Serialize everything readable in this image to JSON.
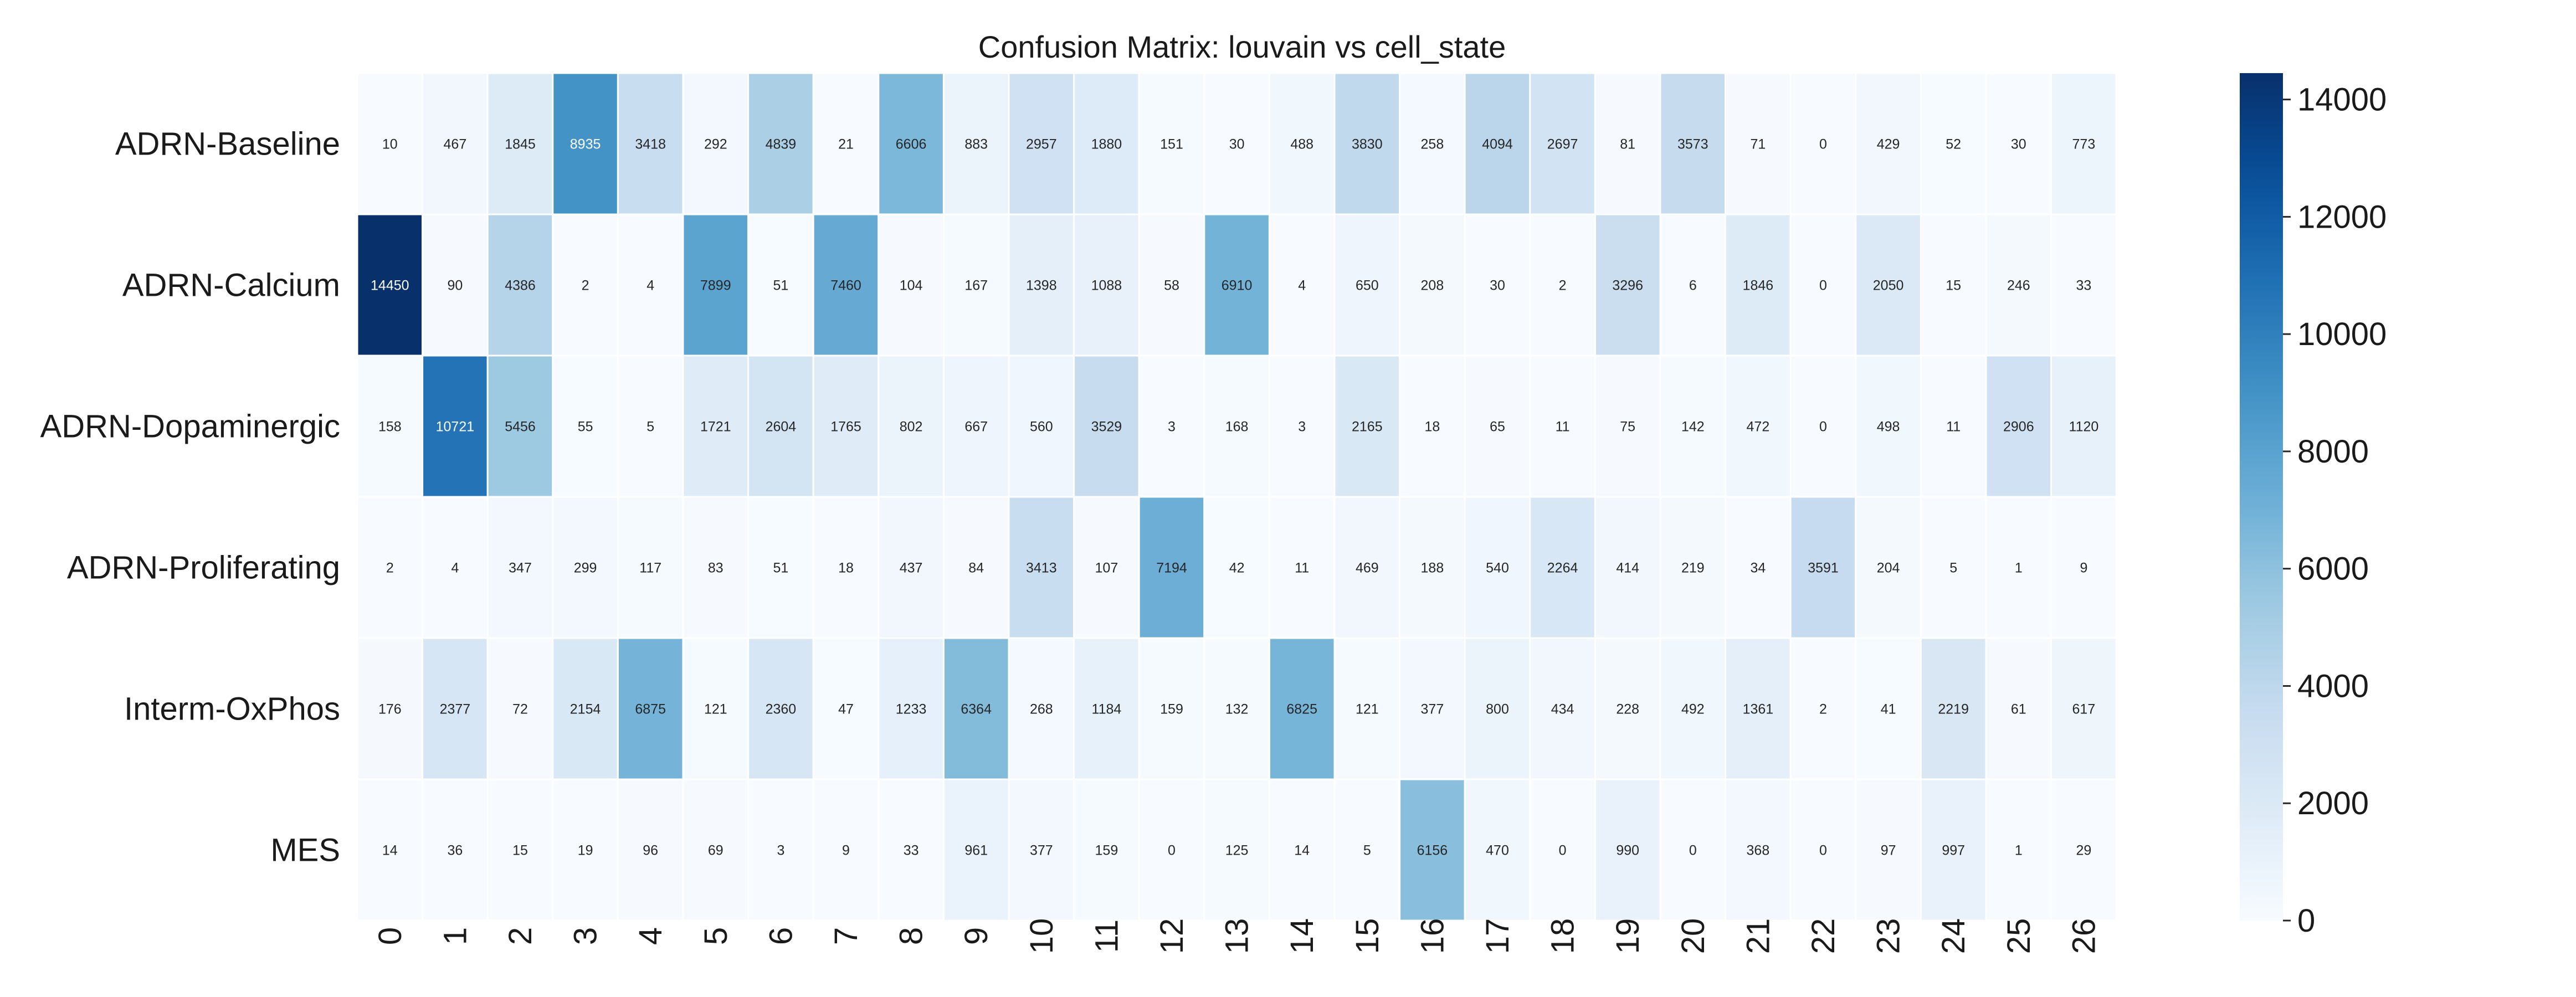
{
  "chart_data": {
    "type": "heatmap",
    "title": "Confusion Matrix: louvain vs cell_state",
    "rows": [
      "ADRN-Baseline",
      "ADRN-Calcium",
      "ADRN-Dopaminergic",
      "ADRN-Proliferating",
      "Interm-OxPhos",
      "MES"
    ],
    "columns": [
      "0",
      "1",
      "2",
      "3",
      "4",
      "5",
      "6",
      "7",
      "8",
      "9",
      "10",
      "11",
      "12",
      "13",
      "14",
      "15",
      "16",
      "17",
      "18",
      "19",
      "20",
      "21",
      "22",
      "23",
      "24",
      "25",
      "26"
    ],
    "values": [
      [
        10,
        467,
        1845,
        8935,
        3418,
        292,
        4839,
        21,
        6606,
        883,
        2957,
        1880,
        151,
        30,
        488,
        3830,
        258,
        4094,
        2697,
        81,
        3573,
        71,
        0,
        429,
        52,
        30,
        773
      ],
      [
        14450,
        90,
        4386,
        2,
        4,
        7899,
        51,
        7460,
        104,
        167,
        1398,
        1088,
        58,
        6910,
        4,
        650,
        208,
        30,
        2,
        3296,
        6,
        1846,
        0,
        2050,
        15,
        246,
        33
      ],
      [
        158,
        10721,
        5456,
        55,
        5,
        1721,
        2604,
        1765,
        802,
        667,
        560,
        3529,
        3,
        168,
        3,
        2165,
        18,
        65,
        11,
        75,
        142,
        472,
        0,
        498,
        11,
        2906,
        1120
      ],
      [
        2,
        4,
        347,
        299,
        117,
        83,
        51,
        18,
        437,
        84,
        3413,
        107,
        7194,
        42,
        11,
        469,
        188,
        540,
        2264,
        414,
        219,
        34,
        3591,
        204,
        5,
        1,
        9
      ],
      [
        176,
        2377,
        72,
        2154,
        6875,
        121,
        2360,
        47,
        1233,
        6364,
        268,
        1184,
        159,
        132,
        6825,
        121,
        377,
        800,
        434,
        228,
        492,
        1361,
        2,
        41,
        2219,
        61,
        617
      ],
      [
        14,
        36,
        15,
        19,
        96,
        69,
        3,
        9,
        33,
        961,
        377,
        159,
        0,
        125,
        14,
        5,
        6156,
        470,
        0,
        990,
        0,
        368,
        0,
        97,
        997,
        1,
        29
      ]
    ],
    "colormap": "Blues",
    "vmin": 0,
    "vmax": 14450,
    "colorbar": {
      "ticks": [
        0,
        2000,
        4000,
        6000,
        8000,
        10000,
        12000,
        14000
      ],
      "labels": [
        "0",
        "2000",
        "4000",
        "6000",
        "8000",
        "10000",
        "12000",
        "14000"
      ]
    },
    "annotations": true,
    "cell_border_color": "#ffffff"
  }
}
